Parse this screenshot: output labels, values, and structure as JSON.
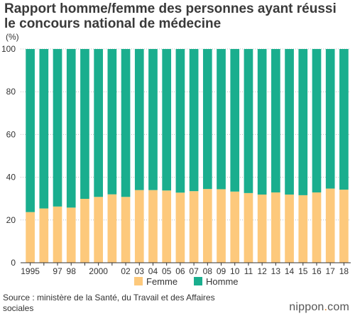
{
  "header": {
    "title_line1": "Rapport homme/femme des personnes ayant réussi",
    "title_line2": "le concours national de médecine",
    "unit": "(%)"
  },
  "footer": {
    "source": "Source : ministère de la Santé, du Travail et des Affaires sociales",
    "brand_prefix": "nippon",
    "brand_dot": ".",
    "brand_suffix": "com"
  },
  "colors": {
    "femme": "#fdc97c",
    "homme": "#1aae8e",
    "grid": "#bdbdbd",
    "axis": "#333333",
    "brand_dot": "#e07a1f"
  },
  "chart_data": {
    "type": "bar",
    "stacked": true,
    "categories": [
      "1995",
      "1996",
      "1997",
      "1998",
      "1999",
      "2000",
      "2001",
      "2002",
      "2003",
      "2004",
      "2005",
      "2006",
      "2007",
      "2008",
      "2009",
      "2010",
      "2011",
      "2012",
      "2013",
      "2014",
      "2015",
      "2016",
      "2017",
      "2018"
    ],
    "tick_labels": [
      "1995",
      "",
      "97",
      "98",
      "",
      "2000",
      "",
      "02",
      "03",
      "04",
      "05",
      "06",
      "07",
      "08",
      "09",
      "10",
      "11",
      "12",
      "13",
      "14",
      "15",
      "16",
      "17",
      "18"
    ],
    "series": [
      {
        "name": "Femme",
        "color": "#fdc97c",
        "values": [
          23.7,
          25.4,
          26.3,
          25.8,
          29.9,
          30.8,
          32.0,
          30.8,
          34.0,
          34.0,
          33.8,
          32.8,
          33.5,
          34.5,
          34.4,
          33.3,
          32.6,
          31.9,
          32.9,
          31.9,
          31.6,
          32.9,
          34.7,
          34.2
        ]
      },
      {
        "name": "Homme",
        "color": "#1aae8e",
        "values": [
          76.3,
          74.6,
          73.7,
          74.2,
          70.1,
          69.2,
          68.0,
          69.2,
          66.0,
          66.0,
          66.2,
          67.2,
          66.5,
          65.5,
          65.6,
          66.7,
          67.4,
          68.1,
          67.1,
          68.1,
          68.4,
          67.1,
          65.3,
          65.8
        ]
      }
    ],
    "ylim": [
      0,
      100
    ],
    "yticks": [
      "0",
      "20",
      "40",
      "60",
      "80",
      "100"
    ],
    "ytick_values": [
      0,
      20,
      40,
      60,
      80,
      100
    ],
    "grid": true,
    "legend": {
      "position": "bottom-center",
      "items": [
        "Femme",
        "Homme"
      ]
    },
    "xlabel": "",
    "ylabel": "(%)"
  }
}
